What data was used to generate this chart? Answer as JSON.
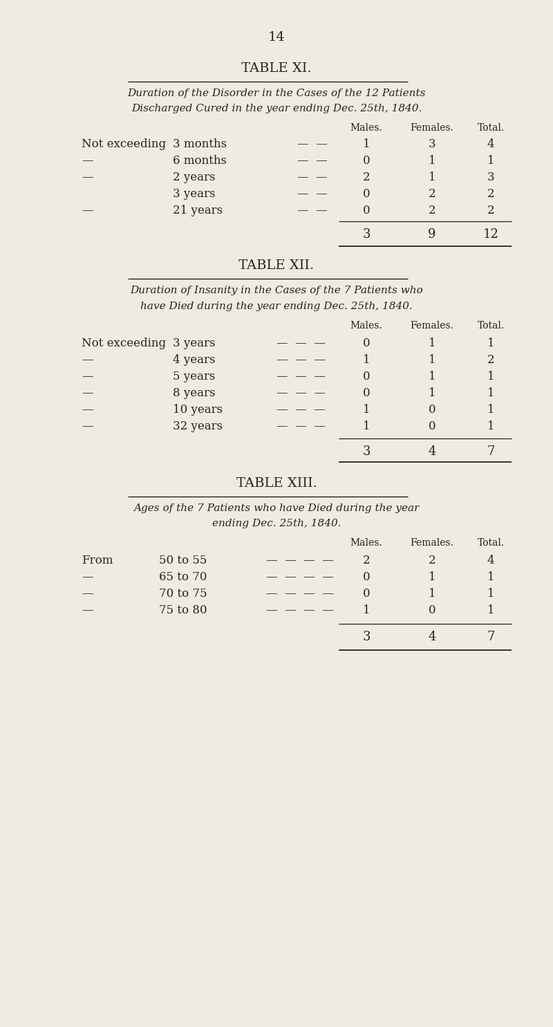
{
  "page_number": "14",
  "bg_color": "#f0ebe0",
  "text_color": "#2a2018",
  "table11": {
    "title": "TABLE XI.",
    "subtitle_line1": "Duration of the Disorder in the Cases of the 12 Patients",
    "subtitle_line2": "Discharged Cured in the year ending Dec. 25th, 1840.",
    "col_headers": [
      "Males.",
      "Females.",
      "Total."
    ],
    "rows": [
      {
        "label1": "Not exceeding",
        "label2": "3 months",
        "dashes": "—  —",
        "males": "1",
        "females": "3",
        "total": "4"
      },
      {
        "label1": "—",
        "label2": "6 months",
        "dashes": "—  —",
        "males": "0",
        "females": "1",
        "total": "1"
      },
      {
        "label1": "—",
        "label2": "2 years",
        "dashes": "—  —",
        "males": "2",
        "females": "1",
        "total": "3"
      },
      {
        "label1": "",
        "label2": "3 years",
        "dashes": "—  —",
        "males": "0",
        "females": "2",
        "total": "2"
      },
      {
        "label1": "—",
        "label2": "21 years",
        "dashes": "—  —",
        "males": "0",
        "females": "2",
        "total": "2"
      }
    ],
    "totals": [
      "3",
      "9",
      "12"
    ]
  },
  "table12": {
    "title": "TABLE XII.",
    "subtitle_line1": "Duration of Insanity in the Cases of the 7 Patients who",
    "subtitle_line2": "have Died during the year ending Dec. 25th, 1840.",
    "col_headers": [
      "Males.",
      "Females.",
      "Total."
    ],
    "rows": [
      {
        "label1": "Not exceeding",
        "label2": "3 years",
        "dashes": "—  —  —",
        "males": "0",
        "females": "1",
        "total": "1"
      },
      {
        "label1": "—",
        "label2": "4 years",
        "dashes": "—  —  —",
        "males": "1",
        "females": "1",
        "total": "2"
      },
      {
        "label1": "—",
        "label2": "5 years",
        "dashes": "—  —  —",
        "males": "0",
        "females": "1",
        "total": "1"
      },
      {
        "label1": "—",
        "label2": "8 years",
        "dashes": "—  —  —",
        "males": "0",
        "females": "1",
        "total": "1"
      },
      {
        "label1": "—",
        "label2": "10 years",
        "dashes": "—  —  —",
        "males": "1",
        "females": "0",
        "total": "1"
      },
      {
        "label1": "—",
        "label2": "32 years",
        "dashes": "—  —  —",
        "males": "1",
        "females": "0",
        "total": "1"
      }
    ],
    "totals": [
      "3",
      "4",
      "7"
    ]
  },
  "table13": {
    "title": "TABLE XIII.",
    "subtitle_line1": "Ages of the 7 Patients who have Died during the year",
    "subtitle_line2": "ending Dec. 25th, 1840.",
    "col_headers": [
      "Males.",
      "Females.",
      "Total."
    ],
    "rows": [
      {
        "label1": "From",
        "label2": "50 to 55",
        "dashes": "—  —  —  —",
        "males": "2",
        "females": "2",
        "total": "4"
      },
      {
        "label1": "—",
        "label2": "65 to 70",
        "dashes": "—  —  —  —",
        "males": "0",
        "females": "1",
        "total": "1"
      },
      {
        "label1": "—",
        "label2": "70 to 75",
        "dashes": "—  —  —  —",
        "males": "0",
        "females": "1",
        "total": "1"
      },
      {
        "label1": "—",
        "label2": "75 to 80",
        "dashes": "—  —  —  —",
        "males": "1",
        "females": "0",
        "total": "1"
      }
    ],
    "totals": [
      "3",
      "4",
      "7"
    ]
  }
}
